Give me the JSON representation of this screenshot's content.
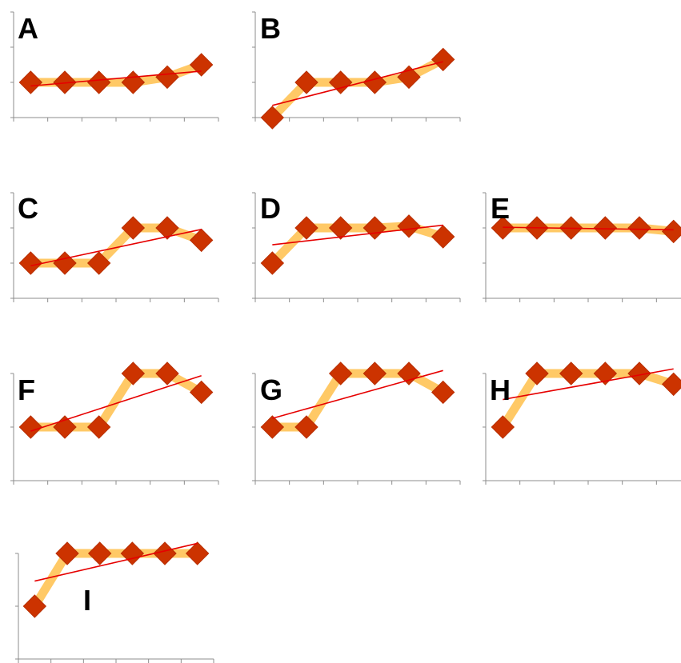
{
  "colors": {
    "axis": "#8c8c8c",
    "series_line": "#ffc966",
    "marker": "#cc3300",
    "marker_edge": "#b82e00",
    "trend": "#e60000",
    "label": "#000000"
  },
  "chart_data": [
    {
      "type": "line",
      "panel": "A",
      "x": [
        1,
        2,
        3,
        4,
        5,
        6
      ],
      "values": [
        1,
        1,
        1,
        1,
        1.15,
        1.5
      ],
      "trendline": "linear",
      "ylim": [
        0,
        3
      ],
      "xlim": [
        0.5,
        6.5
      ],
      "legend": "none",
      "grid": false
    },
    {
      "type": "line",
      "panel": "B",
      "x": [
        1,
        2,
        3,
        4,
        5,
        6
      ],
      "values": [
        0,
        1,
        1,
        1,
        1.15,
        1.65
      ],
      "trendline": "linear",
      "ylim": [
        0,
        3
      ],
      "xlim": [
        0.5,
        6.5
      ],
      "legend": "none",
      "grid": false
    },
    {
      "type": "line",
      "panel": "C",
      "x": [
        1,
        2,
        3,
        4,
        5,
        6
      ],
      "values": [
        1,
        1,
        1,
        2,
        2,
        1.65
      ],
      "trendline": "linear",
      "ylim": [
        0,
        3
      ],
      "xlim": [
        0.5,
        6.5
      ],
      "legend": "none",
      "grid": false
    },
    {
      "type": "line",
      "panel": "D",
      "x": [
        1,
        2,
        3,
        4,
        5,
        6
      ],
      "values": [
        1,
        2,
        2,
        2,
        2.05,
        1.75
      ],
      "trendline": "linear",
      "ylim": [
        0,
        3
      ],
      "xlim": [
        0.5,
        6.5
      ],
      "legend": "none",
      "grid": false
    },
    {
      "type": "line",
      "panel": "E",
      "x": [
        1,
        2,
        3,
        4,
        5,
        6
      ],
      "values": [
        2,
        2,
        2,
        2,
        2,
        1.9
      ],
      "trendline": "linear",
      "ylim": [
        0,
        3
      ],
      "xlim": [
        0.5,
        6.5
      ],
      "legend": "none",
      "grid": false
    },
    {
      "type": "line",
      "panel": "F",
      "x": [
        1,
        2,
        3,
        4,
        5,
        6
      ],
      "values": [
        1,
        1,
        1,
        2,
        2,
        1.65
      ],
      "trendline": "linear",
      "ylim": [
        0,
        2
      ],
      "xlim": [
        0.5,
        6.5
      ],
      "legend": "none",
      "grid": false
    },
    {
      "type": "line",
      "panel": "G",
      "x": [
        1,
        2,
        3,
        4,
        5,
        6
      ],
      "values": [
        1,
        1,
        2,
        2,
        2,
        1.65
      ],
      "trendline": "linear",
      "ylim": [
        0,
        2
      ],
      "xlim": [
        0.5,
        6.5
      ],
      "legend": "none",
      "grid": false
    },
    {
      "type": "line",
      "panel": "H",
      "x": [
        1,
        2,
        3,
        4,
        5,
        6
      ],
      "values": [
        1,
        2,
        2,
        2,
        2,
        1.8
      ],
      "trendline": "linear",
      "ylim": [
        0,
        2
      ],
      "xlim": [
        0.5,
        6.5
      ],
      "legend": "none",
      "grid": false
    },
    {
      "type": "line",
      "panel": "I",
      "x": [
        1,
        2,
        3,
        4,
        5,
        6
      ],
      "values": [
        1,
        2,
        2,
        2,
        2,
        2
      ],
      "trendline": "linear",
      "ylim": [
        0,
        2
      ],
      "xlim": [
        0.5,
        6.5
      ],
      "legend": "none",
      "grid": false
    }
  ]
}
